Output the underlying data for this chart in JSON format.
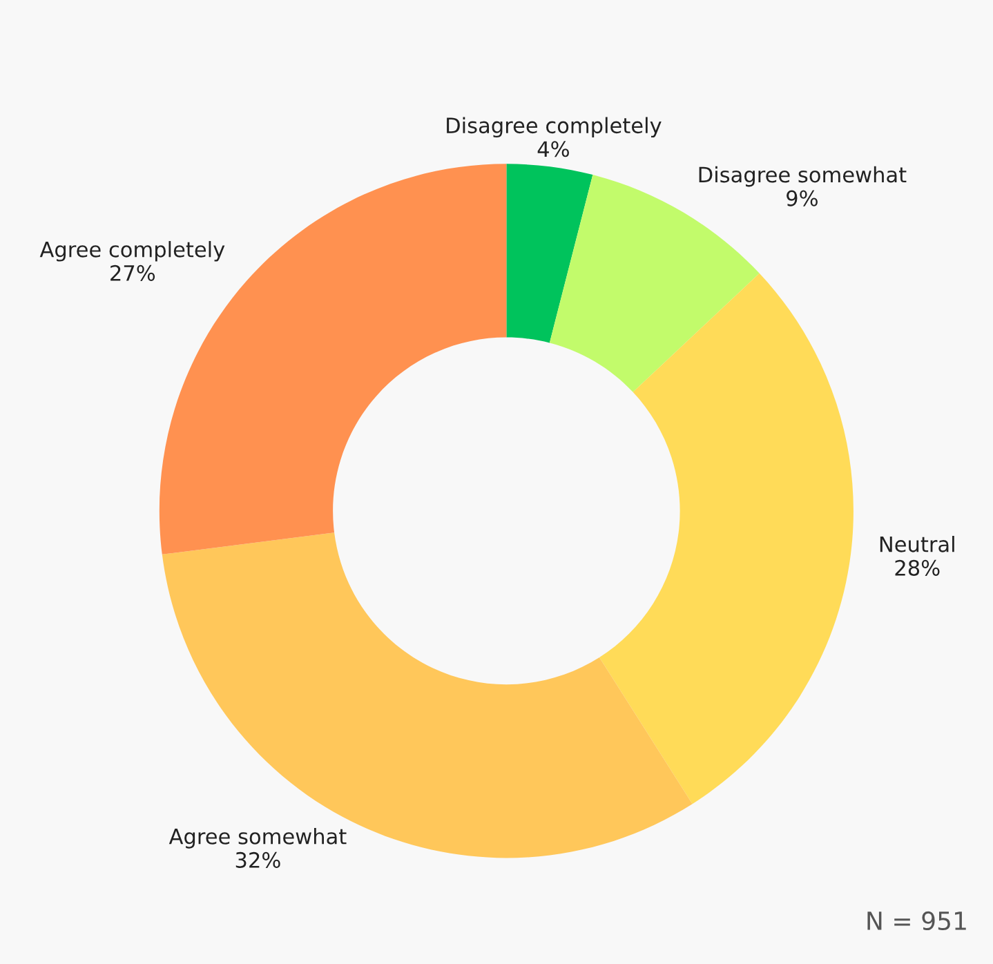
{
  "chart_data": {
    "type": "donut",
    "categories": [
      "Disagree completely",
      "Disagree somewhat",
      "Neutral",
      "Agree somewhat",
      "Agree completely"
    ],
    "values": [
      4,
      9,
      28,
      32,
      27
    ],
    "value_labels": [
      "4%",
      "9%",
      "28%",
      "32%",
      "27%"
    ],
    "colors": [
      "#00c35c",
      "#c2fb6b",
      "#ffdb58",
      "#ffc75a",
      "#ff9150"
    ],
    "annotations": [
      "N = 951"
    ],
    "legend": false
  }
}
